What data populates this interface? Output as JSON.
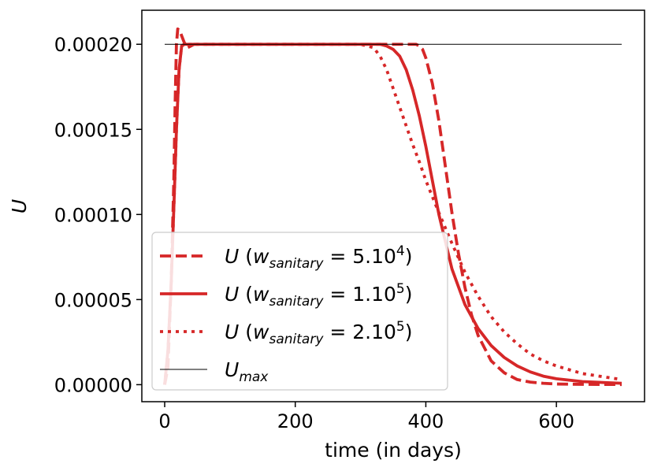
{
  "chart_data": {
    "type": "line",
    "title": "",
    "xlabel": "time (in days)",
    "ylabel": "U",
    "xlim": [
      -35,
      735
    ],
    "ylim": [
      -1e-05,
      0.00022
    ],
    "xticks": [
      0,
      200,
      400,
      600
    ],
    "xtick_labels": [
      "0",
      "200",
      "400",
      "600"
    ],
    "yticks": [
      0,
      5e-05,
      0.0001,
      0.00015,
      0.0002
    ],
    "ytick_labels": [
      "0.00000",
      "0.00005",
      "0.00010",
      "0.00015",
      "0.00020"
    ],
    "grid": false,
    "legend_position": "lower-left",
    "series": [
      {
        "name": "U (w_sanitary = 5.10^4)",
        "legend": {
          "var": "U",
          "sub": "sanitary",
          "value": "5.10",
          "exp": "4"
        },
        "color": "#d62728",
        "style": "dashed",
        "x": [
          0,
          5,
          10,
          14,
          16,
          18,
          20,
          23,
          26,
          30,
          35,
          40,
          45,
          50,
          60,
          100,
          200,
          300,
          340,
          360,
          370,
          378,
          385,
          390,
          395,
          400,
          410,
          420,
          430,
          440,
          450,
          460,
          470,
          480,
          500,
          520,
          540,
          560,
          580,
          600,
          640,
          700
        ],
        "y": [
          0,
          1e-05,
          6e-05,
          0.00012,
          0.000165,
          0.0002,
          0.000209,
          0.000208,
          0.000205,
          0.000201,
          0.000198,
          0.000199,
          0.0002,
          0.0002,
          0.0002,
          0.0002,
          0.0002,
          0.0002,
          0.0002,
          0.0002,
          0.0002,
          0.0002,
          0.0002,
          0.000199,
          0.000197,
          0.000192,
          0.000177,
          0.000155,
          0.000128,
          0.000101,
          7.7e-05,
          5.7e-05,
          4.1e-05,
          2.9e-05,
          1.4e-05,
          7e-06,
          3e-06,
          1.5e-06,
          8e-07,
          4e-07,
          2e-07,
          1e-07
        ]
      },
      {
        "name": "U (w_sanitary = 1.10^5)",
        "legend": {
          "var": "U",
          "sub": "sanitary",
          "value": "1.10",
          "exp": "5"
        },
        "color": "#d62728",
        "style": "solid",
        "x": [
          0,
          5,
          10,
          15,
          18,
          22,
          26,
          30,
          40,
          60,
          100,
          200,
          300,
          330,
          340,
          350,
          360,
          370,
          380,
          390,
          400,
          410,
          420,
          440,
          460,
          480,
          500,
          520,
          540,
          560,
          580,
          600,
          640,
          700
        ],
        "y": [
          0,
          2e-05,
          6e-05,
          0.000115,
          0.00015,
          0.000185,
          0.000199,
          0.0002,
          0.0002,
          0.0002,
          0.0002,
          0.0002,
          0.0002,
          0.0002,
          0.000199,
          0.000197,
          0.000193,
          0.000185,
          0.000173,
          0.000158,
          0.00014,
          0.00012,
          0.0001,
          6.8e-05,
          4.7e-05,
          3.3e-05,
          2.3e-05,
          1.6e-05,
          1.1e-05,
          7.5e-06,
          5e-06,
          3.5e-06,
          1.8e-06,
          8e-07
        ]
      },
      {
        "name": "U (w_sanitary = 2.10^5)",
        "legend": {
          "var": "U",
          "sub": "sanitary",
          "value": "2.10",
          "exp": "5"
        },
        "color": "#d62728",
        "style": "dotted",
        "x": [
          0,
          5,
          10,
          15,
          18,
          22,
          26,
          30,
          40,
          60,
          100,
          200,
          300,
          320,
          330,
          340,
          350,
          360,
          370,
          380,
          390,
          400,
          420,
          440,
          460,
          480,
          500,
          520,
          540,
          560,
          580,
          600,
          640,
          700
        ],
        "y": [
          0,
          2e-05,
          6e-05,
          0.000115,
          0.00015,
          0.000185,
          0.000199,
          0.0002,
          0.0002,
          0.0002,
          0.0002,
          0.0002,
          0.0002,
          0.000198,
          0.000193,
          0.000185,
          0.000174,
          0.000163,
          0.000152,
          0.000141,
          0.000131,
          0.00012,
          0.000101,
          8.3e-05,
          6.6e-05,
          5.2e-05,
          4e-05,
          3.1e-05,
          2.4e-05,
          1.8e-05,
          1.4e-05,
          1.1e-05,
          6.5e-06,
          3e-06
        ]
      },
      {
        "name": "U_max",
        "legend": {
          "var": "U",
          "sub": "max",
          "value": "",
          "exp": ""
        },
        "color": "#000000",
        "style": "thin",
        "x": [
          0,
          700
        ],
        "y": [
          0.0002,
          0.0002
        ]
      }
    ]
  }
}
